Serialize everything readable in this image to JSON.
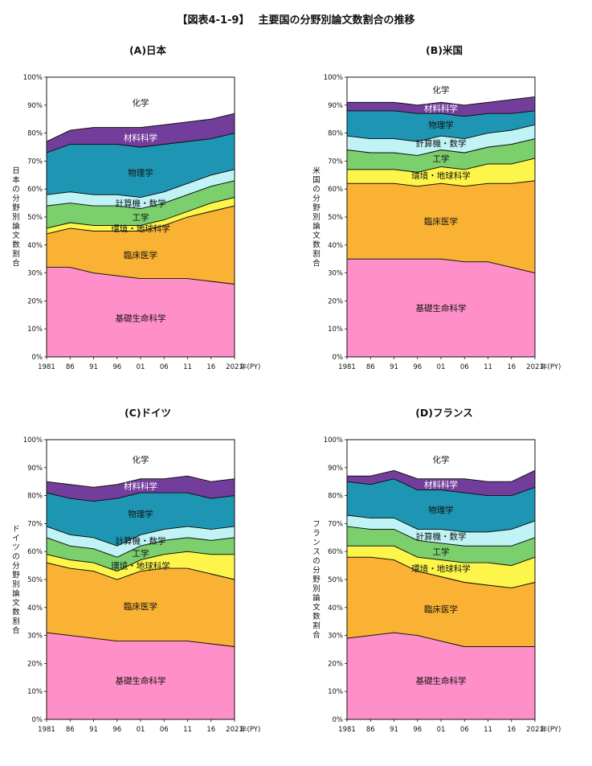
{
  "title": "【図表4-1-9】　 主要国の分野別論文数割合の推移",
  "x_unit": "年(PY)",
  "chart_data": [
    {
      "type": "area",
      "stacked": true,
      "title": "(A)日本",
      "ylabel": "日本の分野別論文数割合",
      "xlabel": "年(PY)",
      "ylim": [
        0,
        100
      ],
      "yticks": [
        "0%",
        "10%",
        "20%",
        "30%",
        "40%",
        "50%",
        "60%",
        "70%",
        "80%",
        "90%",
        "100%"
      ],
      "xticks": [
        "1981",
        "86",
        "91",
        "96",
        "01",
        "06",
        "11",
        "16",
        "2021"
      ],
      "x": [
        1981,
        1986,
        1991,
        1996,
        2001,
        2006,
        2011,
        2016,
        2021
      ],
      "series": [
        {
          "name": "基礎生命科学",
          "color": "#ff8fc8",
          "values": [
            32,
            32,
            30,
            29,
            28,
            28,
            28,
            27,
            26
          ]
        },
        {
          "name": "臨床医学",
          "color": "#f9b233",
          "values": [
            12,
            14,
            15,
            16,
            17,
            19,
            22,
            25,
            28
          ]
        },
        {
          "name": "環境・地球科学",
          "color": "#fdf54a",
          "values": [
            2,
            2,
            2,
            2,
            2,
            2,
            2,
            3,
            3
          ]
        },
        {
          "name": "工学",
          "color": "#7bcf6d",
          "values": [
            8,
            7,
            7,
            7,
            6,
            6,
            6,
            6,
            6
          ]
        },
        {
          "name": "計算機・数学",
          "color": "#c0f3f6",
          "values": [
            4,
            4,
            4,
            4,
            4,
            4,
            4,
            4,
            4
          ]
        },
        {
          "name": "物理学",
          "color": "#1e96b3",
          "values": [
            15,
            17,
            18,
            18,
            18,
            17,
            15,
            13,
            13
          ]
        },
        {
          "name": "材料科学",
          "color": "#733d9b",
          "values": [
            4,
            5,
            6,
            6,
            7,
            7,
            7,
            7,
            7
          ]
        },
        {
          "name": "化学",
          "color": "#ffffff",
          "values": [
            23,
            19,
            18,
            18,
            18,
            17,
            16,
            15,
            13
          ]
        }
      ],
      "labels": [
        {
          "text": "化学",
          "series": "化学",
          "color": "#111"
        },
        {
          "text": "材料科学",
          "series": "材料科学",
          "color": "#fff"
        },
        {
          "text": "物理学",
          "series": "物理学",
          "color": "#111"
        },
        {
          "text": "計算機・数学",
          "series": "計算機・数学",
          "color": "#111"
        },
        {
          "text": "工学",
          "series": "工学",
          "color": "#111"
        },
        {
          "text": "環境・地球科学",
          "series": "環境・地球科学",
          "color": "#111"
        },
        {
          "text": "臨床医学",
          "series": "臨床医学",
          "color": "#111"
        },
        {
          "text": "基礎生命科学",
          "series": "基礎生命科学",
          "color": "#111"
        }
      ]
    },
    {
      "type": "area",
      "stacked": true,
      "title": "(B)米国",
      "ylabel": "米国の分野別論文数割合",
      "xlabel": "年(PY)",
      "ylim": [
        0,
        100
      ],
      "yticks": [
        "0%",
        "10%",
        "20%",
        "30%",
        "40%",
        "50%",
        "60%",
        "70%",
        "80%",
        "90%",
        "100%"
      ],
      "xticks": [
        "1981",
        "86",
        "91",
        "96",
        "01",
        "06",
        "11",
        "16",
        "2021"
      ],
      "x": [
        1981,
        1986,
        1991,
        1996,
        2001,
        2006,
        2011,
        2016,
        2021
      ],
      "series": [
        {
          "name": "基礎生命科学",
          "color": "#ff8fc8",
          "values": [
            35,
            35,
            35,
            35,
            35,
            34,
            34,
            32,
            30
          ]
        },
        {
          "name": "臨床医学",
          "color": "#f9b233",
          "values": [
            27,
            27,
            27,
            26,
            27,
            27,
            28,
            30,
            33
          ]
        },
        {
          "name": "環境・地球科学",
          "color": "#fdf54a",
          "values": [
            5,
            5,
            5,
            5,
            6,
            6,
            7,
            7,
            8
          ]
        },
        {
          "name": "工学",
          "color": "#7bcf6d",
          "values": [
            7,
            6,
            6,
            6,
            6,
            6,
            6,
            7,
            7
          ]
        },
        {
          "name": "計算機・数学",
          "color": "#c0f3f6",
          "values": [
            5,
            5,
            5,
            5,
            5,
            5,
            5,
            5,
            5
          ]
        },
        {
          "name": "物理学",
          "color": "#1e96b3",
          "values": [
            9,
            10,
            10,
            10,
            8,
            8,
            7,
            6,
            5
          ]
        },
        {
          "name": "材料科学",
          "color": "#733d9b",
          "values": [
            3,
            3,
            3,
            3,
            4,
            4,
            4,
            5,
            5
          ]
        },
        {
          "name": "化学",
          "color": "#ffffff",
          "values": [
            9,
            9,
            9,
            10,
            9,
            10,
            9,
            8,
            7
          ]
        }
      ],
      "labels": [
        {
          "text": "化学",
          "series": "化学",
          "color": "#111"
        },
        {
          "text": "材料科学",
          "series": "材料科学",
          "color": "#fff"
        },
        {
          "text": "物理学",
          "series": "物理学",
          "color": "#111"
        },
        {
          "text": "計算機・数学",
          "series": "計算機・数学",
          "color": "#111"
        },
        {
          "text": "工学",
          "series": "工学",
          "color": "#111"
        },
        {
          "text": "環境・地球科学",
          "series": "環境・地球科学",
          "color": "#111"
        },
        {
          "text": "臨床医学",
          "series": "臨床医学",
          "color": "#111"
        },
        {
          "text": "基礎生命科学",
          "series": "基礎生命科学",
          "color": "#111"
        }
      ]
    },
    {
      "type": "area",
      "stacked": true,
      "title": "(C)ドイツ",
      "ylabel": "ドイツの分野別論文数割合",
      "xlabel": "年(PY)",
      "ylim": [
        0,
        100
      ],
      "yticks": [
        "0%",
        "10%",
        "20%",
        "30%",
        "40%",
        "50%",
        "60%",
        "70%",
        "80%",
        "90%",
        "100%"
      ],
      "xticks": [
        "1981",
        "86",
        "91",
        "96",
        "01",
        "06",
        "11",
        "16",
        "2021"
      ],
      "x": [
        1981,
        1986,
        1991,
        1996,
        2001,
        2006,
        2011,
        2016,
        2021
      ],
      "series": [
        {
          "name": "基礎生命科学",
          "color": "#ff8fc8",
          "values": [
            31,
            30,
            29,
            28,
            28,
            28,
            28,
            27,
            26
          ]
        },
        {
          "name": "臨床医学",
          "color": "#f9b233",
          "values": [
            25,
            24,
            24,
            22,
            25,
            26,
            26,
            25,
            24
          ]
        },
        {
          "name": "環境・地球科学",
          "color": "#fdf54a",
          "values": [
            3,
            3,
            3,
            3,
            4,
            5,
            6,
            7,
            9
          ]
        },
        {
          "name": "工学",
          "color": "#7bcf6d",
          "values": [
            6,
            5,
            5,
            5,
            5,
            5,
            5,
            5,
            6
          ]
        },
        {
          "name": "計算機・数学",
          "color": "#c0f3f6",
          "values": [
            4,
            4,
            4,
            4,
            4,
            4,
            4,
            4,
            4
          ]
        },
        {
          "name": "物理学",
          "color": "#1e96b3",
          "values": [
            12,
            13,
            13,
            17,
            15,
            13,
            12,
            11,
            11
          ]
        },
        {
          "name": "材料科学",
          "color": "#733d9b",
          "values": [
            4,
            5,
            5,
            5,
            5,
            5,
            6,
            6,
            6
          ]
        },
        {
          "name": "化学",
          "color": "#ffffff",
          "values": [
            15,
            16,
            17,
            16,
            14,
            14,
            13,
            15,
            14
          ]
        }
      ],
      "labels": [
        {
          "text": "化学",
          "series": "化学",
          "color": "#111"
        },
        {
          "text": "材料科学",
          "series": "材料科学",
          "color": "#fff"
        },
        {
          "text": "物理学",
          "series": "物理学",
          "color": "#111"
        },
        {
          "text": "計算機・数学",
          "series": "計算機・数学",
          "color": "#111"
        },
        {
          "text": "工学",
          "series": "工学",
          "color": "#111"
        },
        {
          "text": "環境・地球科学",
          "series": "環境・地球科学",
          "color": "#111"
        },
        {
          "text": "臨床医学",
          "series": "臨床医学",
          "color": "#111"
        },
        {
          "text": "基礎生命科学",
          "series": "基礎生命科学",
          "color": "#111"
        }
      ]
    },
    {
      "type": "area",
      "stacked": true,
      "title": "(D)フランス",
      "ylabel": "フランスの分野別論文数割合",
      "xlabel": "年(PY)",
      "ylim": [
        0,
        100
      ],
      "yticks": [
        "0%",
        "10%",
        "20%",
        "30%",
        "40%",
        "50%",
        "60%",
        "70%",
        "80%",
        "90%",
        "100%"
      ],
      "xticks": [
        "1981",
        "86",
        "91",
        "96",
        "01",
        "06",
        "11",
        "16",
        "2021"
      ],
      "x": [
        1981,
        1986,
        1991,
        1996,
        2001,
        2006,
        2011,
        2016,
        2021
      ],
      "series": [
        {
          "name": "基礎生命科学",
          "color": "#ff8fc8",
          "values": [
            29,
            30,
            31,
            30,
            28,
            26,
            26,
            26,
            26
          ]
        },
        {
          "name": "臨床医学",
          "color": "#f9b233",
          "values": [
            29,
            28,
            26,
            23,
            23,
            23,
            22,
            21,
            23
          ]
        },
        {
          "name": "環境・地球科学",
          "color": "#fdf54a",
          "values": [
            4,
            4,
            5,
            5,
            6,
            7,
            8,
            8,
            9
          ]
        },
        {
          "name": "工学",
          "color": "#7bcf6d",
          "values": [
            7,
            6,
            6,
            6,
            6,
            6,
            6,
            7,
            7
          ]
        },
        {
          "name": "計算機・数学",
          "color": "#c0f3f6",
          "values": [
            4,
            4,
            4,
            4,
            5,
            5,
            5,
            6,
            6
          ]
        },
        {
          "name": "物理学",
          "color": "#1e96b3",
          "values": [
            12,
            12,
            14,
            14,
            14,
            14,
            13,
            12,
            12
          ]
        },
        {
          "name": "材料科学",
          "color": "#733d9b",
          "values": [
            2,
            3,
            3,
            4,
            4,
            5,
            5,
            5,
            6
          ]
        },
        {
          "name": "化学",
          "color": "#ffffff",
          "values": [
            13,
            13,
            11,
            14,
            14,
            14,
            15,
            15,
            11
          ]
        }
      ],
      "labels": [
        {
          "text": "化学",
          "series": "化学",
          "color": "#111"
        },
        {
          "text": "材料科学",
          "series": "材料科学",
          "color": "#fff"
        },
        {
          "text": "物理学",
          "series": "物理学",
          "color": "#111"
        },
        {
          "text": "計算機・数学",
          "series": "計算機・数学",
          "color": "#111"
        },
        {
          "text": "工学",
          "series": "工学",
          "color": "#111"
        },
        {
          "text": "環境・地球科学",
          "series": "環境・地球科学",
          "color": "#111"
        },
        {
          "text": "臨床医学",
          "series": "臨床医学",
          "color": "#111"
        },
        {
          "text": "基礎生命科学",
          "series": "基礎生命科学",
          "color": "#111"
        }
      ]
    }
  ]
}
